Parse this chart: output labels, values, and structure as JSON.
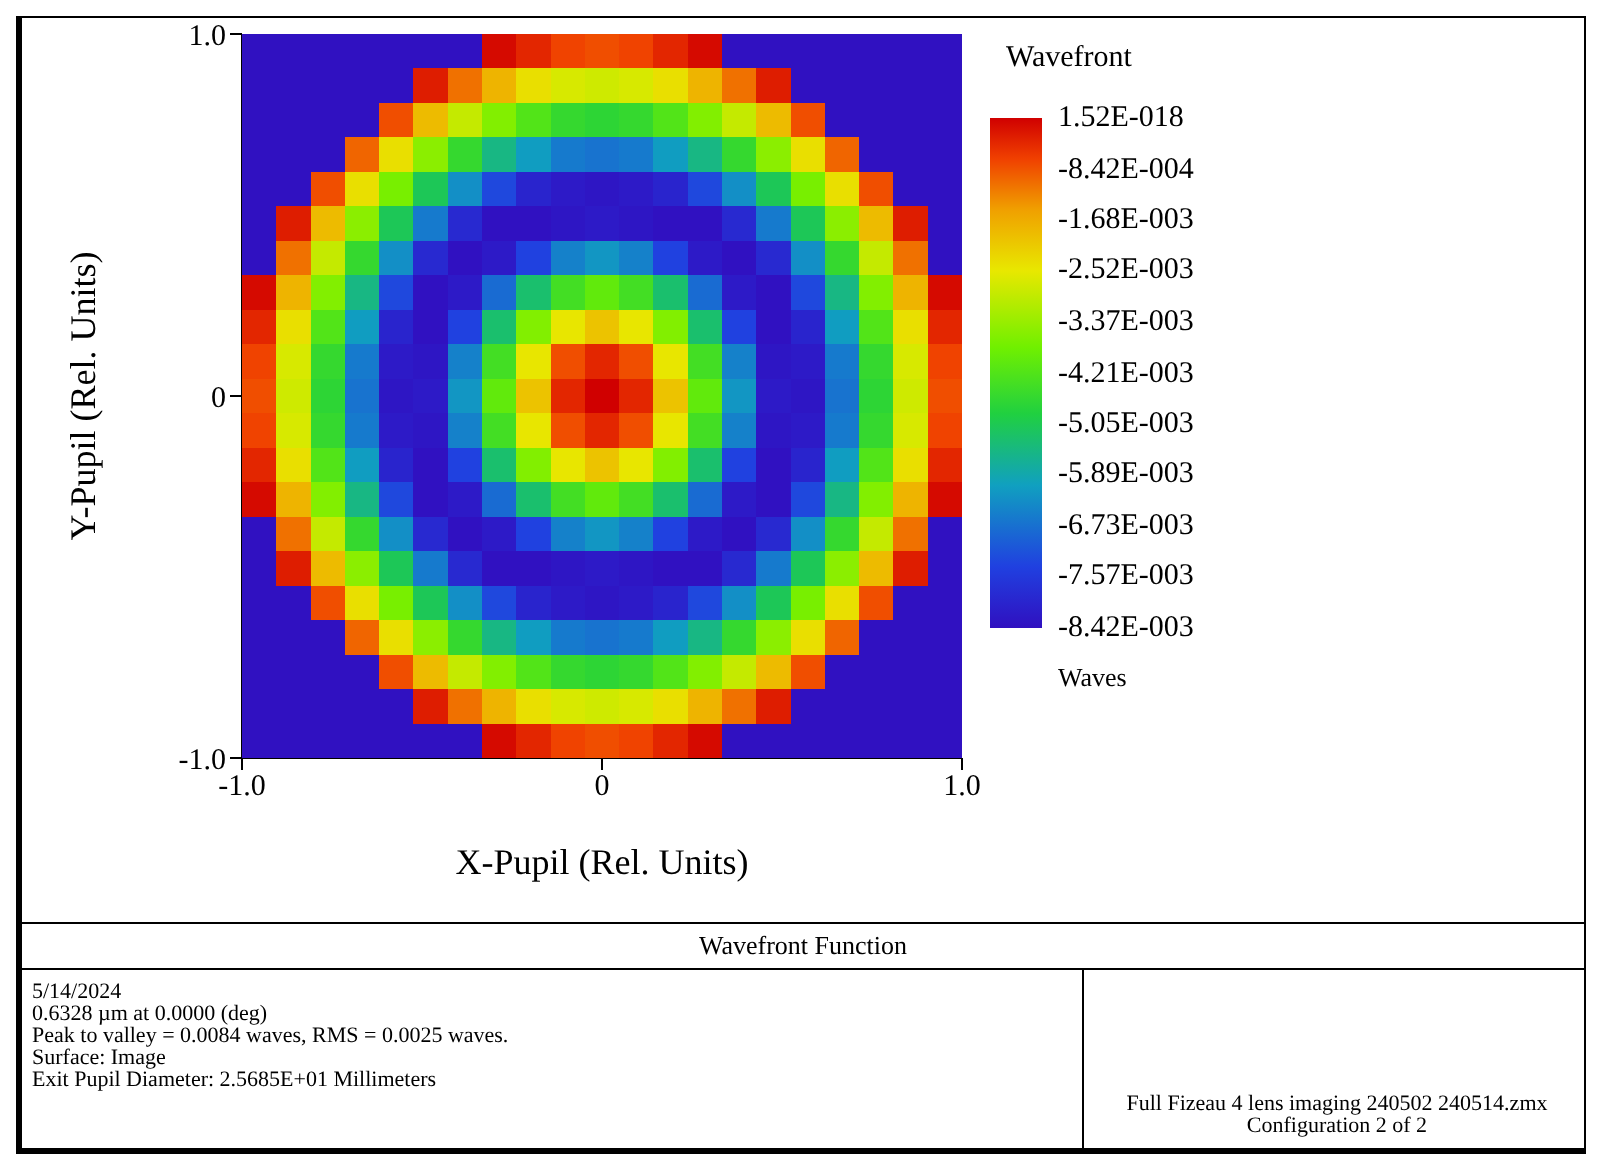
{
  "chart_data": {
    "type": "heatmap",
    "title": "Wavefront Function",
    "clabel": "Wavefront",
    "xlabel": "X-Pupil (Rel. Units)",
    "ylabel": "Y-Pupil (Rel. Units)",
    "xlim": [
      -1,
      1
    ],
    "ylim": [
      -1,
      1
    ],
    "xticks": [
      {
        "value": -1,
        "label": "-1.0"
      },
      {
        "value": 0,
        "label": "0"
      },
      {
        "value": 1,
        "label": "1.0"
      }
    ],
    "yticks": [
      {
        "value": -1,
        "label": "-1.0"
      },
      {
        "value": 0,
        "label": "0"
      },
      {
        "value": 1,
        "label": "1.0"
      }
    ],
    "clim": [
      -0.00842,
      1.52e-18
    ],
    "cticks": [
      {
        "value": 1.52e-18,
        "label": "1.52E-018"
      },
      {
        "value": -0.000842,
        "label": "-8.42E-004"
      },
      {
        "value": -0.00168,
        "label": "-1.68E-003"
      },
      {
        "value": -0.00252,
        "label": "-2.52E-003"
      },
      {
        "value": -0.00337,
        "label": "-3.37E-003"
      },
      {
        "value": -0.00421,
        "label": "-4.21E-003"
      },
      {
        "value": -0.00505,
        "label": "-5.05E-003"
      },
      {
        "value": -0.00589,
        "label": "-5.89E-003"
      },
      {
        "value": -0.00673,
        "label": "-6.73E-003"
      },
      {
        "value": -0.00757,
        "label": "-7.57E-003"
      },
      {
        "value": -0.00842,
        "label": "-8.42E-003"
      }
    ],
    "cells": [
      [
        -0.0084,
        -0.0084,
        -0.0084,
        -0.0084,
        -0.0084,
        -0.0084,
        -0.0084,
        -0.0001,
        -0.0004,
        -0.0007,
        -0.0008,
        -0.0007,
        -0.0004,
        -0.0001,
        -0.0084,
        -0.0084,
        -0.0084,
        -0.0084,
        -0.0084,
        -0.0084,
        -0.0084
      ],
      [
        -0.0084,
        -0.0084,
        -0.0084,
        -0.0084,
        -0.0084,
        -0.0003,
        -0.0011,
        -0.0018,
        -0.0024,
        -0.0027,
        -0.0028,
        -0.0027,
        -0.0024,
        -0.0018,
        -0.0011,
        -0.0003,
        -0.0084,
        -0.0084,
        -0.0084,
        -0.0084,
        -0.0084
      ],
      [
        -0.0084,
        -0.0084,
        -0.0084,
        -0.0084,
        -0.0008,
        -0.0019,
        -0.0029,
        -0.0036,
        -0.0042,
        -0.0046,
        -0.0047,
        -0.0046,
        -0.0042,
        -0.0036,
        -0.0029,
        -0.0019,
        -0.0008,
        -0.0084,
        -0.0084,
        -0.0084,
        -0.0084
      ],
      [
        -0.0084,
        -0.0084,
        -0.0084,
        -0.001,
        -0.0024,
        -0.0035,
        -0.0046,
        -0.0055,
        -0.0061,
        -0.0066,
        -0.0067,
        -0.0066,
        -0.0061,
        -0.0055,
        -0.0046,
        -0.0035,
        -0.0024,
        -0.001,
        -0.0084,
        -0.0084,
        -0.0084
      ],
      [
        -0.0084,
        -0.0084,
        -0.0008,
        -0.0024,
        -0.0037,
        -0.0051,
        -0.0063,
        -0.0073,
        -0.008,
        -0.0082,
        -0.0083,
        -0.0082,
        -0.008,
        -0.0073,
        -0.0063,
        -0.0051,
        -0.0037,
        -0.0024,
        -0.0008,
        -0.0084,
        -0.0084
      ],
      [
        -0.0084,
        -0.0003,
        -0.0019,
        -0.0035,
        -0.0051,
        -0.0066,
        -0.0079,
        -0.0084,
        -0.0084,
        -0.0083,
        -0.0082,
        -0.0083,
        -0.0084,
        -0.0084,
        -0.0079,
        -0.0066,
        -0.0051,
        -0.0035,
        -0.0019,
        -0.0003,
        -0.0084
      ],
      [
        -0.0084,
        -0.0011,
        -0.0029,
        -0.0046,
        -0.0063,
        -0.0079,
        -0.0084,
        -0.0082,
        -0.0074,
        -0.0065,
        -0.0062,
        -0.0065,
        -0.0074,
        -0.0082,
        -0.0084,
        -0.0079,
        -0.0063,
        -0.0046,
        -0.0029,
        -0.0011,
        -0.0084
      ],
      [
        -0.0001,
        -0.0018,
        -0.0036,
        -0.0055,
        -0.0073,
        -0.0084,
        -0.0082,
        -0.0068,
        -0.0053,
        -0.0044,
        -0.004,
        -0.0044,
        -0.0053,
        -0.0068,
        -0.0082,
        -0.0084,
        -0.0073,
        -0.0055,
        -0.0036,
        -0.0018,
        -0.0001
      ],
      [
        -0.0004,
        -0.0024,
        -0.0042,
        -0.0061,
        -0.008,
        -0.0084,
        -0.0074,
        -0.0053,
        -0.0036,
        -0.0025,
        -0.002,
        -0.0025,
        -0.0036,
        -0.0053,
        -0.0074,
        -0.0084,
        -0.008,
        -0.0061,
        -0.0042,
        -0.0024,
        -0.0004
      ],
      [
        -0.0007,
        -0.0027,
        -0.0046,
        -0.0066,
        -0.0082,
        -0.0083,
        -0.0065,
        -0.0044,
        -0.0025,
        -0.0008,
        -0.0004,
        -0.0008,
        -0.0025,
        -0.0044,
        -0.0065,
        -0.0083,
        -0.0082,
        -0.0066,
        -0.0046,
        -0.0027,
        -0.0007
      ],
      [
        -0.0008,
        -0.0028,
        -0.0047,
        -0.0067,
        -0.0083,
        -0.0082,
        -0.0062,
        -0.004,
        -0.002,
        -0.0004,
        0,
        -0.0004,
        -0.002,
        -0.004,
        -0.0062,
        -0.0082,
        -0.0083,
        -0.0067,
        -0.0047,
        -0.0028,
        -0.0008
      ],
      [
        -0.0007,
        -0.0027,
        -0.0046,
        -0.0066,
        -0.0082,
        -0.0083,
        -0.0065,
        -0.0044,
        -0.0025,
        -0.0008,
        -0.0004,
        -0.0008,
        -0.0025,
        -0.0044,
        -0.0065,
        -0.0083,
        -0.0082,
        -0.0066,
        -0.0046,
        -0.0027,
        -0.0007
      ],
      [
        -0.0004,
        -0.0024,
        -0.0042,
        -0.0061,
        -0.008,
        -0.0084,
        -0.0074,
        -0.0053,
        -0.0036,
        -0.0025,
        -0.002,
        -0.0025,
        -0.0036,
        -0.0053,
        -0.0074,
        -0.0084,
        -0.008,
        -0.0061,
        -0.0042,
        -0.0024,
        -0.0004
      ],
      [
        -0.0001,
        -0.0018,
        -0.0036,
        -0.0055,
        -0.0073,
        -0.0084,
        -0.0082,
        -0.0068,
        -0.0053,
        -0.0044,
        -0.004,
        -0.0044,
        -0.0053,
        -0.0068,
        -0.0082,
        -0.0084,
        -0.0073,
        -0.0055,
        -0.0036,
        -0.0018,
        -0.0001
      ],
      [
        -0.0084,
        -0.0011,
        -0.0029,
        -0.0046,
        -0.0063,
        -0.0079,
        -0.0084,
        -0.0082,
        -0.0074,
        -0.0065,
        -0.0062,
        -0.0065,
        -0.0074,
        -0.0082,
        -0.0084,
        -0.0079,
        -0.0063,
        -0.0046,
        -0.0029,
        -0.0011,
        -0.0084
      ],
      [
        -0.0084,
        -0.0003,
        -0.0019,
        -0.0035,
        -0.0051,
        -0.0066,
        -0.0079,
        -0.0084,
        -0.0084,
        -0.0083,
        -0.0082,
        -0.0083,
        -0.0084,
        -0.0084,
        -0.0079,
        -0.0066,
        -0.0051,
        -0.0035,
        -0.0019,
        -0.0003,
        -0.0084
      ],
      [
        -0.0084,
        -0.0084,
        -0.0008,
        -0.0024,
        -0.0037,
        -0.0051,
        -0.0063,
        -0.0073,
        -0.008,
        -0.0082,
        -0.0083,
        -0.0082,
        -0.008,
        -0.0073,
        -0.0063,
        -0.0051,
        -0.0037,
        -0.0024,
        -0.0008,
        -0.0084,
        -0.0084
      ],
      [
        -0.0084,
        -0.0084,
        -0.0084,
        -0.001,
        -0.0024,
        -0.0035,
        -0.0046,
        -0.0055,
        -0.0061,
        -0.0066,
        -0.0067,
        -0.0066,
        -0.0061,
        -0.0055,
        -0.0046,
        -0.0035,
        -0.0024,
        -0.001,
        -0.0084,
        -0.0084,
        -0.0084
      ],
      [
        -0.0084,
        -0.0084,
        -0.0084,
        -0.0084,
        -0.0008,
        -0.0019,
        -0.0029,
        -0.0036,
        -0.0042,
        -0.0046,
        -0.0047,
        -0.0046,
        -0.0042,
        -0.0036,
        -0.0029,
        -0.0019,
        -0.0008,
        -0.0084,
        -0.0084,
        -0.0084,
        -0.0084
      ],
      [
        -0.0084,
        -0.0084,
        -0.0084,
        -0.0084,
        -0.0084,
        -0.0003,
        -0.0011,
        -0.0018,
        -0.0024,
        -0.0027,
        -0.0028,
        -0.0027,
        -0.0024,
        -0.0018,
        -0.0011,
        -0.0003,
        -0.0084,
        -0.0084,
        -0.0084,
        -0.0084,
        -0.0084
      ],
      [
        -0.0084,
        -0.0084,
        -0.0084,
        -0.0084,
        -0.0084,
        -0.0084,
        -0.0084,
        -0.0001,
        -0.0004,
        -0.0007,
        -0.0008,
        -0.0007,
        -0.0004,
        -0.0001,
        -0.0084,
        -0.0084,
        -0.0084,
        -0.0084,
        -0.0084,
        -0.0084,
        -0.0084
      ]
    ],
    "annotations": [
      "Waves",
      "5/14/2024",
      "0.6328 µm at 0.0000 (deg)",
      "Peak to valley = 0.0084 waves, RMS = 0.0025 waves.",
      "Surface: Image",
      "Exit Pupil Diameter: 2.5685E+01 Millimeters",
      "Full Fizeau 4 lens imaging 240502 240514.zmx",
      "Configuration 2 of 2"
    ]
  }
}
